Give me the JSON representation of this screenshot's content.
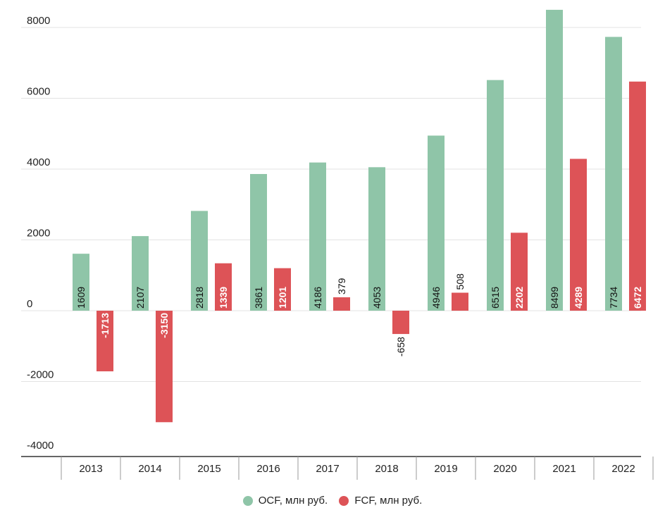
{
  "chart_data": {
    "type": "bar",
    "categories": [
      "2013",
      "2014",
      "2015",
      "2016",
      "2017",
      "2018",
      "2019",
      "2020",
      "2021",
      "2022"
    ],
    "series": [
      {
        "name": "OCF, млн руб.",
        "color": "#8fc5a8",
        "values": [
          1609,
          2107,
          2818,
          3861,
          4186,
          4053,
          4946,
          6515,
          8499,
          7734
        ]
      },
      {
        "name": "FCF, млн руб.",
        "color": "#dd5357",
        "values": [
          -1713,
          -3150,
          1339,
          1201,
          379,
          -658,
          508,
          2202,
          4289,
          6472
        ]
      }
    ],
    "yticks": [
      "8000",
      "6000",
      "4000",
      "2000",
      "0",
      "-2000",
      "-4000"
    ],
    "ylim": [
      -4000,
      8000
    ],
    "grid": true,
    "legend_position": "bottom-center"
  }
}
